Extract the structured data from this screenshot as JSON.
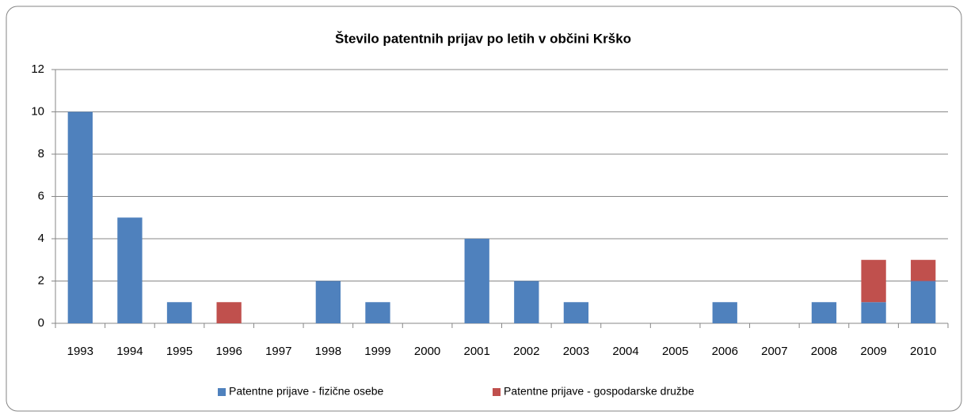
{
  "chart_data": {
    "type": "stacked_bar",
    "title": "Število patentnih prijav po letih v občini Krško",
    "categories": [
      "1993",
      "1994",
      "1995",
      "1996",
      "1997",
      "1998",
      "1999",
      "2000",
      "2001",
      "2002",
      "2003",
      "2004",
      "2005",
      "2006",
      "2007",
      "2008",
      "2009",
      "2010"
    ],
    "series": [
      {
        "name": "Patentne prijave - fizične osebe",
        "color": "#4f81bd",
        "values": [
          10,
          5,
          1,
          0,
          0,
          2,
          1,
          0,
          4,
          2,
          1,
          0,
          0,
          1,
          0,
          1,
          1,
          2
        ]
      },
      {
        "name": "Patentne prijave - gospodarske družbe",
        "color": "#c0504d",
        "values": [
          0,
          0,
          0,
          1,
          0,
          0,
          0,
          0,
          0,
          0,
          0,
          0,
          0,
          0,
          0,
          0,
          2,
          1
        ]
      }
    ],
    "ylim": [
      0,
      12
    ],
    "yticks": [
      0,
      2,
      4,
      6,
      8,
      10,
      12
    ],
    "grid": true,
    "legend": "bottom"
  }
}
